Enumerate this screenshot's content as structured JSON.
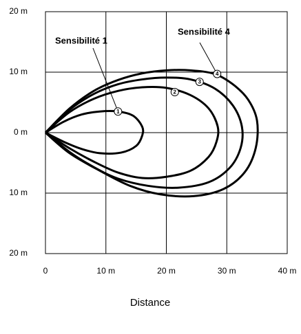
{
  "chart_data": {
    "type": "line",
    "xlabel": "Distance",
    "annotations": [
      "Sensibilité 1",
      "Sensibilité 4"
    ],
    "xlim": [
      0,
      40
    ],
    "ylim": [
      -20,
      20
    ],
    "xticks": [
      0,
      {
        "value": 10,
        "label": "10 m"
      },
      {
        "value": 20,
        "label": "20 m"
      },
      {
        "value": 30,
        "label": "30 m"
      },
      {
        "value": 40,
        "label": "40 m"
      }
    ],
    "yticks": [
      {
        "value": -20,
        "label": "20 m"
      },
      {
        "value": -10,
        "label": "10 m"
      },
      {
        "value": 0,
        "label": "0 m"
      },
      {
        "value": 10,
        "label": "10 m"
      },
      {
        "value": 20,
        "label": "20 m"
      }
    ],
    "grid": true,
    "color": "#000000",
    "series": [
      {
        "label": "1",
        "marker_x": 12,
        "marker_y": 3.5,
        "x": [
          0,
          3,
          6,
          9,
          12,
          14.5,
          16,
          16,
          15,
          12.5,
          9,
          6,
          3,
          0
        ],
        "values": [
          0,
          1.8,
          3,
          3.5,
          3.5,
          2.8,
          1,
          -0.5,
          -2.2,
          -3.3,
          -3.4,
          -2.7,
          -1.5,
          0
        ]
      },
      {
        "label": "2",
        "marker_x": 21.4,
        "marker_y": 6.7,
        "x": [
          0,
          4,
          8,
          12,
          16,
          20,
          24,
          27,
          28.5,
          28.3,
          27,
          24,
          20,
          16,
          12,
          8,
          4,
          0
        ],
        "values": [
          0,
          3.4,
          5.6,
          6.9,
          7.5,
          7.4,
          6.2,
          4,
          1,
          -1.5,
          -4,
          -6.3,
          -7.3,
          -7.5,
          -6.6,
          -4.8,
          -2.6,
          0
        ]
      },
      {
        "label": "3",
        "marker_x": 25.5,
        "marker_y": 8.4,
        "x": [
          0,
          4,
          8,
          12,
          16,
          20,
          24,
          28,
          31,
          32.5,
          32.3,
          30.5,
          27,
          22,
          17,
          12,
          8,
          4,
          0
        ],
        "values": [
          0,
          3.8,
          6.4,
          8,
          8.8,
          9.1,
          8.8,
          7.3,
          4.5,
          1,
          -2.5,
          -5.8,
          -8.2,
          -9.1,
          -8.8,
          -7.6,
          -5.7,
          -3.2,
          0
        ]
      },
      {
        "label": "4",
        "marker_x": 28.4,
        "marker_y": 9.7,
        "x": [
          0,
          4,
          8,
          12,
          16,
          20,
          24,
          28,
          31,
          33.5,
          35,
          34.8,
          33,
          29.5,
          24.5,
          19,
          14,
          9,
          4,
          0
        ],
        "values": [
          0,
          4,
          6.9,
          8.7,
          9.8,
          10.3,
          10.3,
          9.7,
          8,
          5.5,
          2,
          -2.5,
          -6.5,
          -9.3,
          -10.5,
          -10.2,
          -8.8,
          -6.3,
          -3.4,
          0
        ]
      }
    ]
  }
}
